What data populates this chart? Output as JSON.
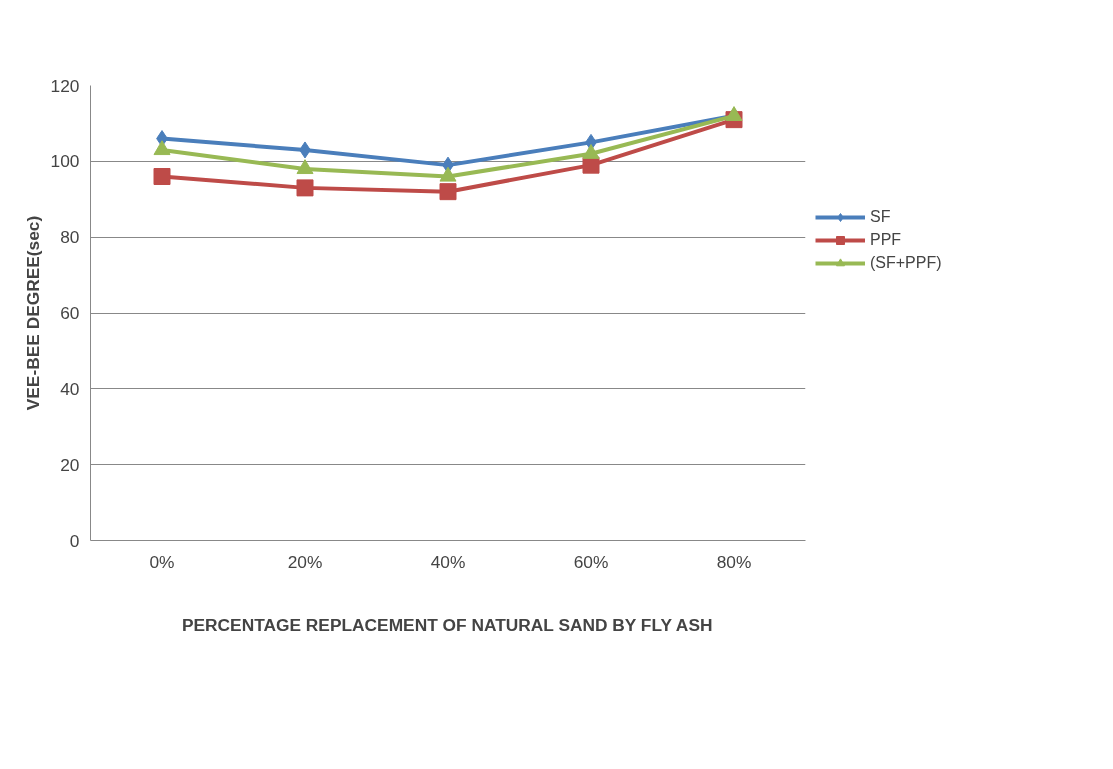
{
  "chart_data": {
    "type": "line",
    "xlabel": "PERCENTAGE REPLACEMENT OF NATURAL SAND BY FLY ASH",
    "ylabel": "VEE-BEE DEGREE(sec)",
    "categories": [
      "0%",
      "20%",
      "40%",
      "60%",
      "80%"
    ],
    "series": [
      {
        "name": "SF",
        "color": "#4a7ebb",
        "marker": "diamond",
        "values": [
          106,
          103,
          99,
          105,
          112
        ]
      },
      {
        "name": "PPF",
        "color": "#be4b48",
        "marker": "square",
        "values": [
          96,
          93,
          92,
          99,
          111
        ]
      },
      {
        "name": "(SF+PPF)",
        "color": "#98b954",
        "marker": "triangle",
        "values": [
          103,
          98,
          96,
          102,
          112
        ]
      }
    ],
    "ylim": [
      0,
      120
    ],
    "yticks": [
      0,
      20,
      40,
      60,
      80,
      100,
      120
    ],
    "grid": "y",
    "legend": "right"
  }
}
